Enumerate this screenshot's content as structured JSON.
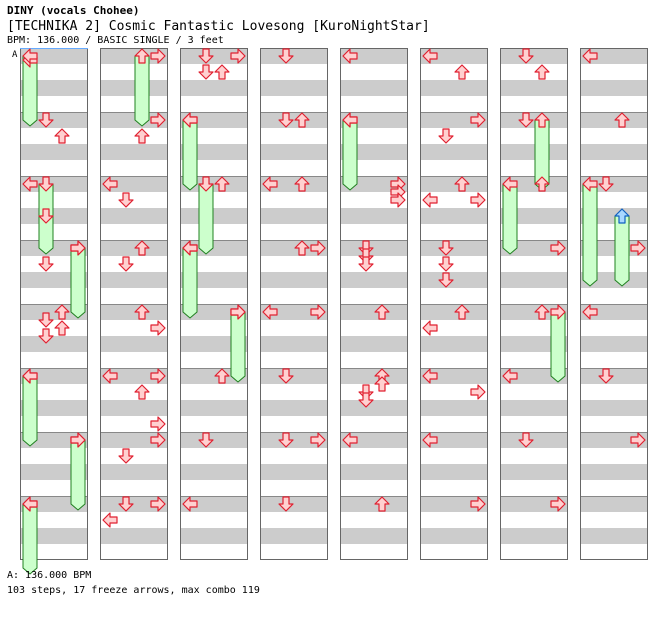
{
  "header": {
    "artist": "DINY (vocals Chohee)",
    "title": "[TECHNIKA 2] Cosmic Fantastic Lovesong [KuroNightStar]",
    "info": "BPM: 136.000 / BASIC SINGLE / 3 feet"
  },
  "bpm_marker": "A",
  "footer": {
    "bpm_line": "A: 136.000 BPM",
    "steps_line": "103 steps, 17 freeze arrows, max combo 119"
  },
  "colors": {
    "arrow_fill": "#ffd0d0",
    "arrow_stroke": "#e02030",
    "freeze_fill": "#ccffcc",
    "freeze_stroke": "#208020",
    "up_special_fill": "#a8d8ff",
    "up_special_stroke": "#1060c0",
    "stripe": "#cccccc",
    "bpm_line": "#66aaff"
  },
  "chart_data": {
    "type": "step-chart",
    "columns": 8,
    "measures_per_column": 8,
    "beats_per_measure": 4,
    "lanes": [
      "left",
      "down",
      "up",
      "right"
    ],
    "notes": [
      {
        "m": 0,
        "b": 0.25,
        "lane": "left"
      },
      {
        "m": 1,
        "b": 0,
        "lane": "down"
      },
      {
        "m": 1,
        "b": 1,
        "lane": "up"
      },
      {
        "m": 2,
        "b": 0,
        "lane": "left"
      },
      {
        "m": 2,
        "b": 2,
        "lane": "down"
      },
      {
        "m": 3,
        "b": 0,
        "lane": "right"
      },
      {
        "m": 3,
        "b": 1,
        "lane": "down"
      },
      {
        "m": 4,
        "b": 0,
        "lane": "up"
      },
      {
        "m": 4,
        "b": 0.5,
        "lane": "down"
      },
      {
        "m": 4,
        "b": 1,
        "lane": "up"
      },
      {
        "m": 4,
        "b": 1.5,
        "lane": "down"
      },
      {
        "m": 5,
        "b": 0,
        "lane": "left"
      },
      {
        "m": 6,
        "b": 0,
        "lane": "right"
      },
      {
        "m": 7,
        "b": 0,
        "lane": "left"
      },
      {
        "m": 8,
        "b": 0,
        "lane": "right"
      },
      {
        "m": 9,
        "b": 0,
        "lane": "right"
      },
      {
        "m": 9,
        "b": 1,
        "lane": "up"
      },
      {
        "m": 10,
        "b": 0,
        "lane": "left"
      },
      {
        "m": 10,
        "b": 1,
        "lane": "down"
      },
      {
        "m": 11,
        "b": 0,
        "lane": "up"
      },
      {
        "m": 11,
        "b": 1,
        "lane": "down"
      },
      {
        "m": 12,
        "b": 0,
        "lane": "up"
      },
      {
        "m": 12,
        "b": 1,
        "lane": "right"
      },
      {
        "m": 13,
        "b": 0,
        "lane": "left"
      },
      {
        "m": 13,
        "b": 0,
        "lane": "right"
      },
      {
        "m": 13,
        "b": 1,
        "lane": "up"
      },
      {
        "m": 13,
        "b": 3,
        "lane": "right"
      },
      {
        "m": 14,
        "b": 0,
        "lane": "right"
      },
      {
        "m": 14,
        "b": 1,
        "lane": "down"
      },
      {
        "m": 15,
        "b": 0,
        "lane": "down"
      },
      {
        "m": 15,
        "b": 0,
        "lane": "right"
      },
      {
        "m": 15,
        "b": 1,
        "lane": "left"
      },
      {
        "m": 16,
        "b": 0,
        "lane": "down"
      },
      {
        "m": 16,
        "b": 0,
        "lane": "right"
      },
      {
        "m": 16,
        "b": 1,
        "lane": "down"
      },
      {
        "m": 16,
        "b": 1,
        "lane": "up"
      },
      {
        "m": 17,
        "b": 0,
        "lane": "left"
      },
      {
        "m": 18,
        "b": 0,
        "lane": "up"
      },
      {
        "m": 19,
        "b": 0,
        "lane": "left"
      },
      {
        "m": 20,
        "b": 0,
        "lane": "right"
      },
      {
        "m": 21,
        "b": 0,
        "lane": "up"
      },
      {
        "m": 22,
        "b": 0,
        "lane": "down"
      },
      {
        "m": 23,
        "b": 0,
        "lane": "left"
      },
      {
        "m": 24,
        "b": 0,
        "lane": "down"
      },
      {
        "m": 25,
        "b": 0,
        "lane": "down"
      },
      {
        "m": 25,
        "b": 0,
        "lane": "up"
      },
      {
        "m": 26,
        "b": 0,
        "lane": "left"
      },
      {
        "m": 26,
        "b": 0,
        "lane": "up"
      },
      {
        "m": 27,
        "b": 0,
        "lane": "up"
      },
      {
        "m": 27,
        "b": 0,
        "lane": "right"
      },
      {
        "m": 28,
        "b": 0,
        "lane": "left"
      },
      {
        "m": 28,
        "b": 0,
        "lane": "right"
      },
      {
        "m": 29,
        "b": 0,
        "lane": "down"
      },
      {
        "m": 30,
        "b": 0,
        "lane": "down"
      },
      {
        "m": 30,
        "b": 0,
        "lane": "right"
      },
      {
        "m": 31,
        "b": 0,
        "lane": "down"
      },
      {
        "m": 32,
        "b": 0,
        "lane": "left"
      },
      {
        "m": 33,
        "b": 0,
        "lane": "left"
      },
      {
        "m": 34,
        "b": 0,
        "lane": "right"
      },
      {
        "m": 34,
        "b": 0.5,
        "lane": "right"
      },
      {
        "m": 34,
        "b": 1,
        "lane": "right"
      },
      {
        "m": 35,
        "b": 0,
        "lane": "down"
      },
      {
        "m": 35,
        "b": 0.5,
        "lane": "down"
      },
      {
        "m": 35,
        "b": 1,
        "lane": "down"
      },
      {
        "m": 36,
        "b": 0,
        "lane": "up"
      },
      {
        "m": 37,
        "b": 0,
        "lane": "up"
      },
      {
        "m": 37,
        "b": 0.5,
        "lane": "up"
      },
      {
        "m": 37,
        "b": 1,
        "lane": "down"
      },
      {
        "m": 37,
        "b": 1.5,
        "lane": "down"
      },
      {
        "m": 38,
        "b": 0,
        "lane": "left"
      },
      {
        "m": 39,
        "b": 0,
        "lane": "up"
      },
      {
        "m": 40,
        "b": 0,
        "lane": "left"
      },
      {
        "m": 40,
        "b": 1,
        "lane": "up"
      },
      {
        "m": 41,
        "b": 0,
        "lane": "right"
      },
      {
        "m": 41,
        "b": 1,
        "lane": "down"
      },
      {
        "m": 42,
        "b": 0,
        "lane": "up"
      },
      {
        "m": 42,
        "b": 1,
        "lane": "left"
      },
      {
        "m": 42,
        "b": 1,
        "lane": "right"
      },
      {
        "m": 43,
        "b": 0,
        "lane": "down"
      },
      {
        "m": 43,
        "b": 1,
        "lane": "down"
      },
      {
        "m": 43,
        "b": 2,
        "lane": "down"
      },
      {
        "m": 44,
        "b": 0,
        "lane": "up"
      },
      {
        "m": 44,
        "b": 1,
        "lane": "left"
      },
      {
        "m": 45,
        "b": 0,
        "lane": "left"
      },
      {
        "m": 45,
        "b": 1,
        "lane": "right"
      },
      {
        "m": 46,
        "b": 0,
        "lane": "left"
      },
      {
        "m": 47,
        "b": 0,
        "lane": "right"
      },
      {
        "m": 48,
        "b": 0,
        "lane": "down"
      },
      {
        "m": 48,
        "b": 1,
        "lane": "up"
      },
      {
        "m": 49,
        "b": 0,
        "lane": "down"
      },
      {
        "m": 50,
        "b": 0,
        "lane": "up"
      },
      {
        "m": 51,
        "b": 0,
        "lane": "right"
      },
      {
        "m": 52,
        "b": 0,
        "lane": "up"
      },
      {
        "m": 53,
        "b": 0,
        "lane": "left"
      },
      {
        "m": 54,
        "b": 0,
        "lane": "down"
      },
      {
        "m": 55,
        "b": 0,
        "lane": "right"
      },
      {
        "m": 56,
        "b": 0,
        "lane": "left"
      },
      {
        "m": 57,
        "b": 0,
        "lane": "up"
      },
      {
        "m": 58,
        "b": 0,
        "lane": "down"
      },
      {
        "m": 59,
        "b": 0,
        "lane": "right"
      },
      {
        "m": 60,
        "b": 0,
        "lane": "left"
      },
      {
        "m": 61,
        "b": 0,
        "lane": "down"
      },
      {
        "m": 62,
        "b": 0,
        "lane": "right"
      }
    ],
    "freezes": [
      {
        "m": 0,
        "b": 0,
        "lane": "left",
        "len": 4
      },
      {
        "m": 2,
        "b": 0,
        "lane": "down",
        "len": 4
      },
      {
        "m": 3,
        "b": 0,
        "lane": "right",
        "len": 4
      },
      {
        "m": 5,
        "b": 0,
        "lane": "left",
        "len": 4
      },
      {
        "m": 6,
        "b": 0,
        "lane": "right",
        "len": 4
      },
      {
        "m": 7,
        "b": 0,
        "lane": "left",
        "len": 4
      },
      {
        "m": 8,
        "b": 0,
        "lane": "up",
        "len": 4
      },
      {
        "m": 17,
        "b": 0,
        "lane": "left",
        "len": 4
      },
      {
        "m": 18,
        "b": 0,
        "lane": "down",
        "len": 4
      },
      {
        "m": 19,
        "b": 0,
        "lane": "left",
        "len": 4
      },
      {
        "m": 20,
        "b": 0,
        "lane": "right",
        "len": 4
      },
      {
        "m": 33,
        "b": 0,
        "lane": "left",
        "len": 4
      },
      {
        "m": 49,
        "b": 0,
        "lane": "up",
        "len": 4
      },
      {
        "m": 50,
        "b": 0,
        "lane": "left",
        "len": 4
      },
      {
        "m": 52,
        "b": 0,
        "lane": "right",
        "len": 4
      },
      {
        "m": 58,
        "b": 0,
        "lane": "left",
        "len": 6
      },
      {
        "m": 58,
        "b": 2,
        "lane": "up",
        "len": 4
      }
    ]
  }
}
